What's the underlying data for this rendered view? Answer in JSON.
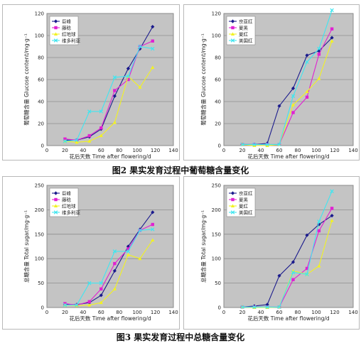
{
  "figure2_caption": "图2  果实发育过程中葡萄糖含量变化",
  "figure3_caption": "图3  果实发育过程中总糖含量变化",
  "colors": {
    "c1": "#1a1a8c",
    "c2": "#e021d2",
    "c3": "#f2f222",
    "c4": "#3fe6f0"
  },
  "chart_data": [
    {
      "type": "line",
      "xlabel": "花后天数  Time after flowering/d",
      "ylabel": "葡萄糖含量  Glucose content/mg·g⁻¹",
      "xlim": [
        0,
        140
      ],
      "ylim": [
        0,
        120
      ],
      "xticks": [
        0,
        20,
        40,
        60,
        80,
        100,
        120,
        140
      ],
      "yticks": [
        0,
        20,
        40,
        60,
        80,
        100,
        120
      ],
      "grid": true,
      "legend": "top-left",
      "series": [
        {
          "name": "巨峰",
          "x": [
            20,
            33,
            47,
            60,
            75,
            90,
            103,
            117
          ],
          "y": [
            5,
            5,
            8,
            15,
            45,
            70,
            88,
            108
          ]
        },
        {
          "name": "藤稔",
          "x": [
            20,
            33,
            47,
            60,
            75,
            90,
            103,
            117
          ],
          "y": [
            6,
            5,
            9,
            16,
            50,
            60,
            90,
            95
          ]
        },
        {
          "name": "红地球",
          "x": [
            20,
            33,
            47,
            60,
            75,
            90,
            103,
            117
          ],
          "y": [
            4,
            3,
            4,
            9,
            21,
            63,
            53,
            71
          ]
        },
        {
          "name": "维多利亚",
          "x": [
            20,
            33,
            47,
            60,
            75,
            90,
            103,
            117
          ],
          "y": [
            4,
            5,
            31,
            31,
            62,
            63,
            90,
            88
          ]
        }
      ]
    },
    {
      "type": "line",
      "xlabel": "花后天数  Time after flowering/d",
      "ylabel": "葡萄糖含量  Glucose content/mg·g⁻¹",
      "xlim": [
        0,
        140
      ],
      "ylim": [
        0,
        120
      ],
      "xticks": [
        0,
        20,
        40,
        60,
        80,
        100,
        120,
        140
      ],
      "yticks": [
        0,
        20,
        40,
        60,
        80,
        100,
        120
      ],
      "grid": true,
      "legend": "top-left",
      "series": [
        {
          "name": "京亚红",
          "x": [
            20,
            33,
            47,
            60,
            75,
            90,
            103,
            117
          ],
          "y": [
            1,
            1,
            2,
            36,
            52,
            82,
            86,
            98
          ]
        },
        {
          "name": "夏黑",
          "x": [
            20,
            33,
            47,
            60,
            75,
            90,
            103,
            117
          ],
          "y": [
            1,
            1,
            1,
            1,
            30,
            44,
            83,
            106
          ]
        },
        {
          "name": "夏红",
          "x": [
            20,
            33,
            47,
            60,
            75,
            90,
            103,
            117
          ],
          "y": [
            1,
            0,
            0,
            1,
            37,
            49,
            61,
            95
          ]
        },
        {
          "name": "美国红",
          "x": [
            20,
            33,
            47,
            60,
            75,
            90,
            103,
            117
          ],
          "y": [
            1,
            1,
            1,
            1,
            45,
            76,
            88,
            123
          ]
        }
      ]
    },
    {
      "type": "line",
      "xlabel": "花后天数  Time after flowering/d",
      "ylabel": "总糖含量  Total sugar/mg·g⁻¹",
      "xlim": [
        0,
        140
      ],
      "ylim": [
        0,
        250
      ],
      "xticks": [
        0,
        20,
        40,
        60,
        80,
        100,
        120,
        140
      ],
      "yticks": [
        0,
        50,
        100,
        150,
        200,
        250
      ],
      "grid": true,
      "legend": "top-left",
      "series": [
        {
          "name": "巨峰",
          "x": [
            20,
            33,
            47,
            60,
            75,
            90,
            103,
            117
          ],
          "y": [
            6,
            6,
            10,
            25,
            75,
            125,
            160,
            195
          ]
        },
        {
          "name": "藤稔",
          "x": [
            20,
            33,
            47,
            60,
            75,
            90,
            103,
            117
          ],
          "y": [
            8,
            5,
            12,
            38,
            90,
            120,
            158,
            170
          ]
        },
        {
          "name": "红地球",
          "x": [
            20,
            33,
            47,
            60,
            75,
            90,
            103,
            117
          ],
          "y": [
            5,
            4,
            5,
            10,
            38,
            108,
            100,
            138
          ]
        },
        {
          "name": "维多利亚",
          "x": [
            20,
            33,
            47,
            60,
            75,
            90,
            103,
            117
          ],
          "y": [
            5,
            5,
            50,
            50,
            115,
            115,
            158,
            160
          ]
        }
      ]
    },
    {
      "type": "line",
      "xlabel": "花后天数  Time after flowering/d",
      "ylabel": "总糖含量  Total sugar/mg·g⁻¹",
      "xlim": [
        0,
        140
      ],
      "ylim": [
        0,
        250
      ],
      "xticks": [
        0,
        20,
        40,
        60,
        80,
        100,
        120,
        140
      ],
      "yticks": [
        0,
        50,
        100,
        150,
        200,
        250
      ],
      "grid": true,
      "legend": "top-left",
      "series": [
        {
          "name": "京亚红",
          "x": [
            20,
            33,
            47,
            60,
            75,
            90,
            103,
            117
          ],
          "y": [
            1,
            3,
            6,
            65,
            93,
            148,
            170,
            188
          ]
        },
        {
          "name": "夏黑",
          "x": [
            20,
            33,
            47,
            60,
            75,
            90,
            103,
            117
          ],
          "y": [
            1,
            1,
            1,
            1,
            57,
            80,
            157,
            203
          ]
        },
        {
          "name": "夏红",
          "x": [
            20,
            33,
            47,
            60,
            75,
            90,
            103,
            117
          ],
          "y": [
            1,
            0,
            0,
            1,
            75,
            68,
            85,
            178
          ]
        },
        {
          "name": "美国红",
          "x": [
            20,
            33,
            47,
            60,
            75,
            90,
            103,
            117
          ],
          "y": [
            1,
            1,
            1,
            1,
            72,
            68,
            176,
            238
          ]
        }
      ]
    }
  ]
}
